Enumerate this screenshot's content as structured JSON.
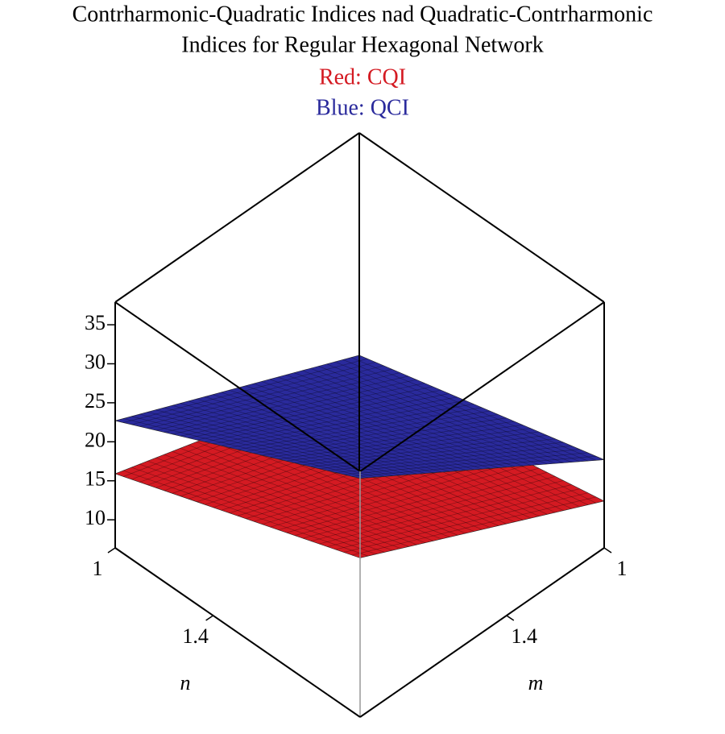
{
  "chart_data": {
    "type": "surface3d",
    "title": [
      "Contrharmonic-Quadratic Indices nad Quadratic-Contrharmonic",
      "Indices for Regular Hexagonal Network"
    ],
    "xlabel": "n",
    "ylabel": "m",
    "xlim": [
      1,
      2
    ],
    "ylim": [
      1,
      2
    ],
    "zlim": [
      6.4,
      37.9
    ],
    "xticks": [
      1,
      1.4
    ],
    "yticks": [
      1,
      1.4
    ],
    "zticks": [
      10,
      15,
      20,
      25,
      30,
      35
    ],
    "series": [
      {
        "name": "Red: CQI",
        "color": "#d41a22",
        "values": [
          [
            6.5,
            15.9
          ],
          [
            12.4,
            26.8
          ]
        ]
      },
      {
        "name": "Blue: QCI",
        "color": "#2a2a9c",
        "values": [
          [
            9.4,
            22.7
          ],
          [
            17.7,
            37
          ]
        ]
      }
    ]
  }
}
